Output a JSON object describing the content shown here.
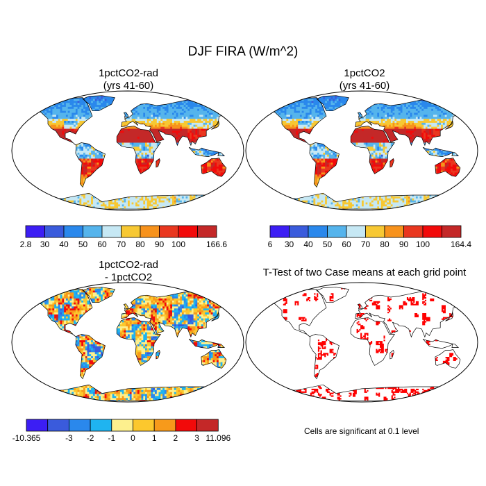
{
  "page": {
    "title": "DJF FIRA (W/m^2)"
  },
  "panels": [
    {
      "title_lines": [
        "1pctCO2-rad",
        "(yrs 41-60)"
      ]
    },
    {
      "title_lines": [
        "1pctCO2",
        "(yrs 41-60)"
      ]
    },
    {
      "title_lines": [
        "1pctCO2-rad",
        "- 1pctCO2"
      ]
    },
    {
      "title_lines": [
        "T-Test of two Case means at each grid point"
      ]
    }
  ],
  "colorbars": [
    {
      "labels": [
        "2.8",
        "30",
        "40",
        "50",
        "60",
        "70",
        "80",
        "90",
        "100",
        "166.6"
      ],
      "colors": [
        "#3c1ef4",
        "#3a5bdc",
        "#2a88ec",
        "#55b4ec",
        "#c6e8f4",
        "#f7c833",
        "#f7921c",
        "#e9371f",
        "#f20a0a",
        "#c42828"
      ]
    },
    {
      "labels": [
        "6",
        "30",
        "40",
        "50",
        "60",
        "70",
        "80",
        "90",
        "100",
        "164.4"
      ],
      "colors": [
        "#3c1ef4",
        "#3a5bdc",
        "#2a88ec",
        "#55b4ec",
        "#c6e8f4",
        "#f7c833",
        "#f7921c",
        "#e9371f",
        "#f20a0a",
        "#c42828"
      ]
    },
    {
      "labels": [
        "-10.365",
        "-3",
        "-2",
        "-1",
        "0",
        "1",
        "2",
        "3",
        "11.096"
      ],
      "colors": [
        "#3c1ef4",
        "#3a5bdc",
        "#2a88ec",
        "#1fb4f0",
        "#fdf08e",
        "#fcc82d",
        "#f79a1b",
        "#f20a0a",
        "#c42828"
      ]
    }
  ],
  "significance": {
    "note": "Cells are significant at 0.1 level",
    "color": "#ff0000"
  },
  "chart_data": {
    "type": "heatmap",
    "projection": "Robinson",
    "season": "DJF",
    "variable": "FIRA",
    "units": "W/m^2",
    "maps": [
      {
        "title": "1pctCO2-rad (yrs 41-60)",
        "range": [
          2.8,
          166.6
        ]
      },
      {
        "title": "1pctCO2 (yrs 41-60)",
        "range": [
          6,
          164.4
        ]
      },
      {
        "title": "1pctCO2-rad - 1pctCO2",
        "range": [
          -10.365,
          11.096
        ]
      },
      {
        "title": "T-Test of two Case means at each grid point",
        "significance_level": 0.1
      }
    ]
  }
}
